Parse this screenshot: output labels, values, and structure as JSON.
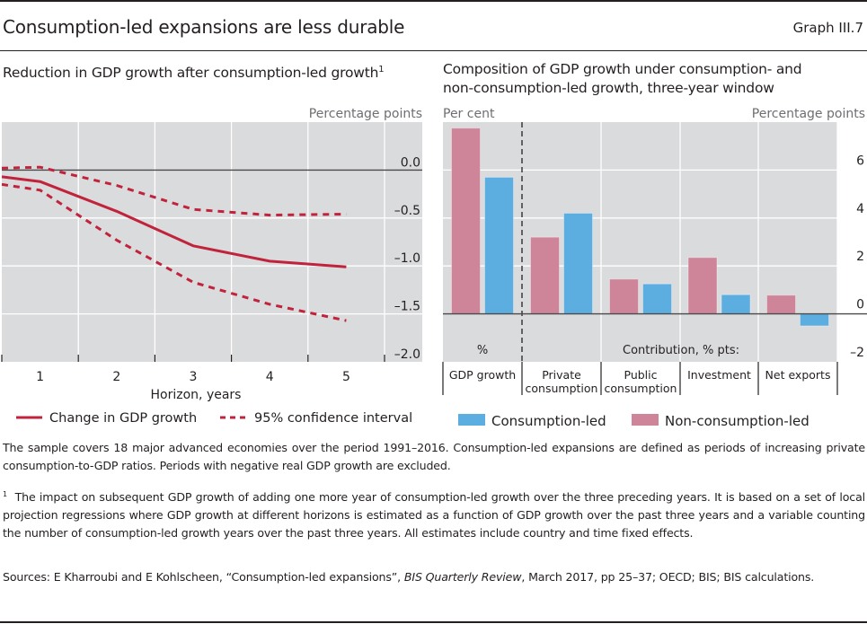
{
  "header": {
    "title": "Consumption-led expansions are less durable",
    "graph_number": "Graph III.7"
  },
  "colors": {
    "line_red": "#c0233b",
    "consumption_led_blue": "#5daee0",
    "non_consumption_led_pink": "#cf8599",
    "plot_background": "#dadbdd",
    "axis_dark": "#4a4a4a",
    "unit_label_grey": "#6d6e71"
  },
  "chart_data": [
    {
      "type": "line",
      "title": "Reduction in GDP growth after consumption-led growth",
      "title_footnote_marker": "1",
      "xlabel": "Horizon, years",
      "ylabel": "Percentage points",
      "x_ticks": [
        "1",
        "2",
        "3",
        "4",
        "5"
      ],
      "y_ticks": [
        "0.0",
        "–0.5",
        "–1.0",
        "–1.5",
        "–2.0"
      ],
      "y_tick_values": [
        0.0,
        -0.5,
        -1.0,
        -1.5,
        -2.0
      ],
      "xlim": [
        0.5,
        5.5
      ],
      "ylim": [
        -2.0,
        0.5
      ],
      "grid": true,
      "y_axis_side": "right",
      "legend_placement": "bottom",
      "x": [
        0.5,
        1,
        2,
        3,
        4,
        5
      ],
      "series": [
        {
          "name": "Change in GDP growth",
          "style": "solid",
          "values": [
            -0.07,
            -0.12,
            -0.43,
            -0.79,
            -0.95,
            -1.01
          ]
        },
        {
          "name": "95% confidence interval",
          "style": "dashed",
          "part": "upper",
          "values": [
            0.02,
            0.03,
            -0.16,
            -0.41,
            -0.47,
            -0.46
          ]
        },
        {
          "name": "95% confidence interval",
          "style": "dashed",
          "part": "lower",
          "values": [
            -0.15,
            -0.21,
            -0.73,
            -1.17,
            -1.4,
            -1.57
          ]
        }
      ],
      "legend": [
        "Change in GDP growth",
        "95% confidence interval"
      ]
    },
    {
      "type": "bar",
      "title": "Composition of GDP growth under consumption- and non-consumption-led growth, three-year window",
      "title_line1": "Composition of GDP growth under consumption- and",
      "title_line2": "non-consumption-led growth, three-year window",
      "left_unit_label": "Per cent",
      "right_unit_label": "Percentage points",
      "categories": [
        "GDP growth",
        "Private consumption",
        "Public consumption",
        "Investment",
        "Net exports"
      ],
      "category_label_lines": [
        [
          "GDP growth"
        ],
        [
          "Private",
          "consumption"
        ],
        [
          "Public",
          "consumption"
        ],
        [
          "Investment"
        ],
        [
          "Net exports"
        ]
      ],
      "section_labels": [
        "%",
        "Contribution, % pts:"
      ],
      "y_ticks": [
        "6",
        "4",
        "2",
        "0",
        "–2"
      ],
      "y_tick_values": [
        6,
        4,
        2,
        0,
        -2
      ],
      "ylim": [
        -2,
        8
      ],
      "grid": true,
      "y_axis_side": "right",
      "legend_placement": "bottom",
      "series": [
        {
          "name": "Non-consumption-led",
          "values": [
            7.75,
            3.2,
            1.45,
            2.35,
            0.78
          ]
        },
        {
          "name": "Consumption-led",
          "values": [
            5.7,
            4.2,
            1.25,
            0.8,
            -0.5
          ]
        }
      ],
      "legend": [
        "Consumption-led",
        "Non-consumption-led"
      ]
    }
  ],
  "notes": {
    "sample": "The sample covers 18 major advanced economies over the period 1991–2016. Consumption-led expansions are defined as periods of increasing private consumption-to-GDP ratios. Periods with negative real GDP growth are excluded.",
    "footnote_marker": "1",
    "footnote": "The impact on subsequent GDP growth of adding one more year of consumption-led growth over the three preceding years. It is based on a set of local projection regressions where GDP growth at different horizons is estimated as a function of GDP growth over the past three years and a variable counting the number of consumption-led growth years over the past three years. All estimates include country and time fixed effects.",
    "sources_prefix": "Sources: E Kharroubi and E Kohlscheen, “Consumption-led expansions”, ",
    "sources_italic": "BIS Quarterly Review",
    "sources_suffix": ", March 2017, pp 25–37; OECD; BIS; BIS calculations."
  }
}
